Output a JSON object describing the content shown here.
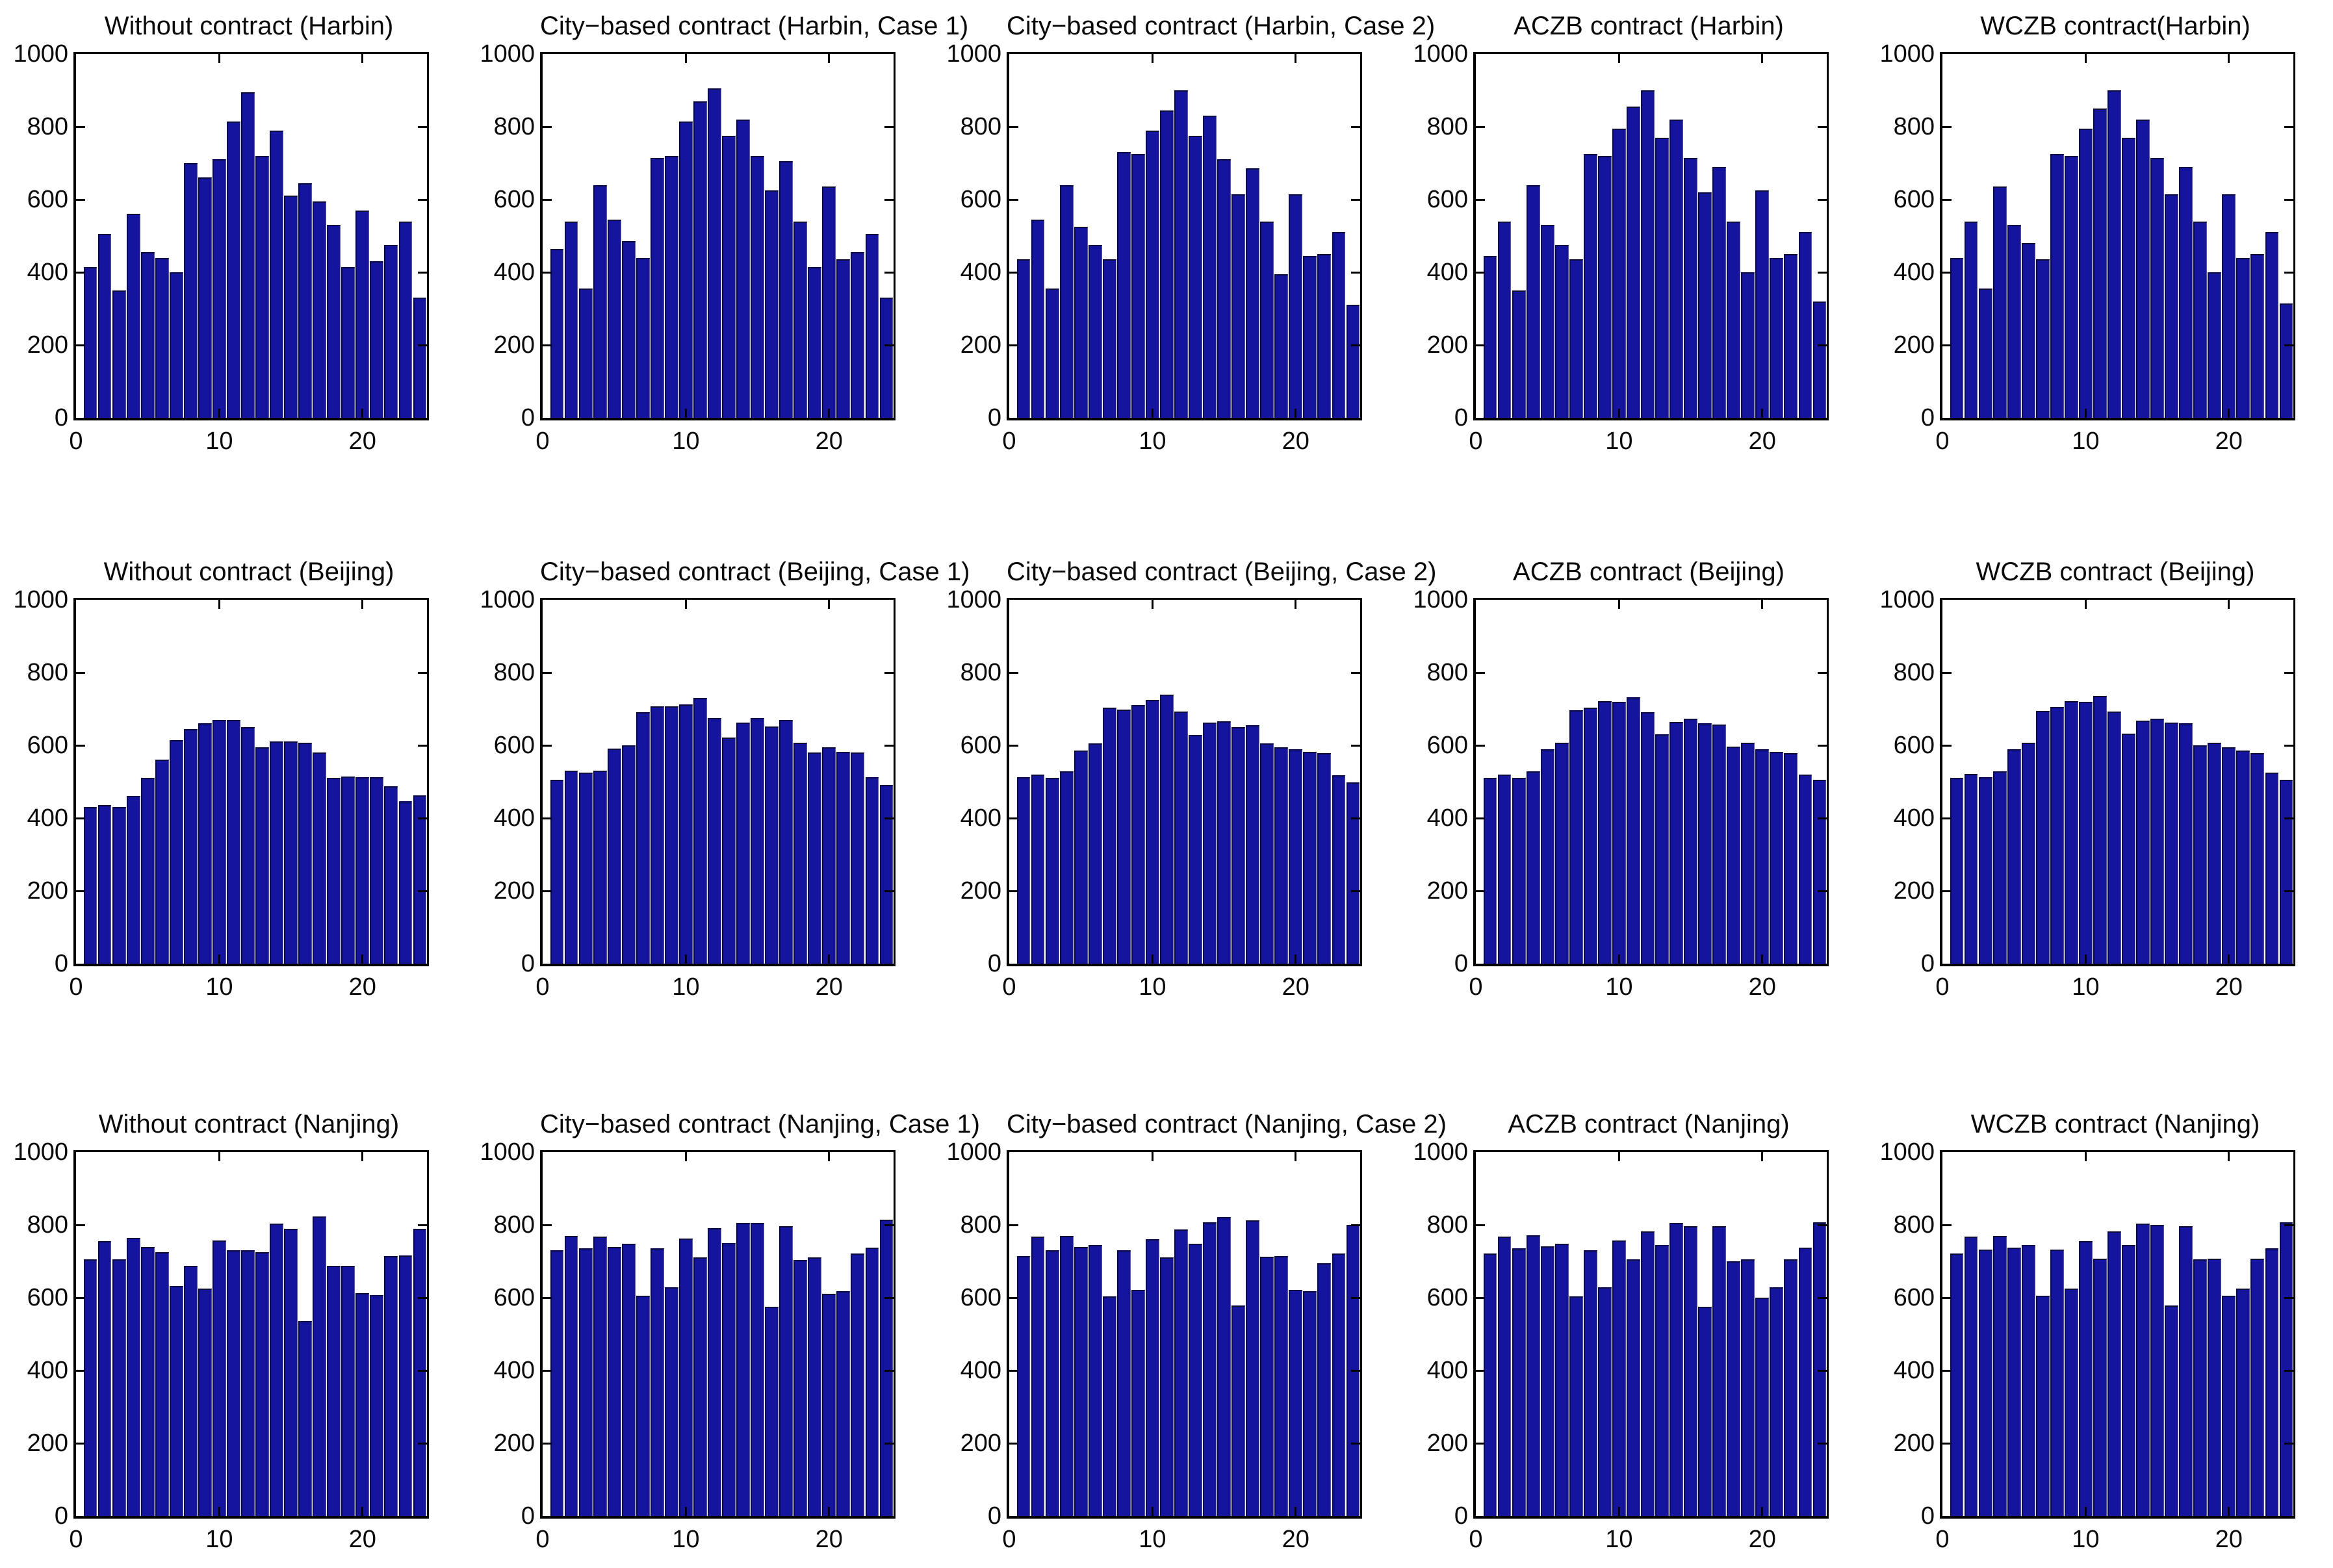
{
  "page": {
    "background": "#ffffff",
    "bar_fill": "#14149e",
    "bar_edge": "#0a0a3c",
    "axis_color": "#000000",
    "text_color": "#0b0b0b"
  },
  "layout_note_free": "",
  "axes_shared": {
    "x_range": [
      0,
      24.5
    ],
    "y_range": [
      0,
      1000
    ],
    "x_ticks": [
      0,
      10,
      20
    ],
    "y_ticks": [
      0,
      200,
      400,
      600,
      800,
      1000
    ],
    "grid": "off",
    "legend": "none"
  },
  "chart_data": [
    {
      "type": "bar",
      "title": "Without contract (Harbin)",
      "city": "Harbin",
      "contract": "Without contract",
      "x_hours": "1-24",
      "ylim": [
        0,
        1000
      ],
      "values": [
        415,
        505,
        350,
        560,
        455,
        440,
        400,
        700,
        660,
        710,
        815,
        895,
        720,
        790,
        610,
        645,
        595,
        530,
        415,
        570,
        430,
        475,
        540,
        330
      ]
    },
    {
      "type": "bar",
      "title": "City−based contract (Harbin, Case 1)",
      "city": "Harbin",
      "contract": "City-based contract, Case 1",
      "x_hours": "1-24",
      "ylim": [
        0,
        1000
      ],
      "values": [
        465,
        540,
        355,
        640,
        545,
        485,
        440,
        715,
        720,
        815,
        870,
        905,
        775,
        820,
        720,
        625,
        705,
        540,
        415,
        635,
        435,
        455,
        505,
        330
      ]
    },
    {
      "type": "bar",
      "title": "City−based contract (Harbin, Case 2)",
      "city": "Harbin",
      "contract": "City-based contract, Case 2",
      "x_hours": "1-24",
      "ylim": [
        0,
        1000
      ],
      "values": [
        435,
        545,
        355,
        640,
        525,
        475,
        435,
        730,
        725,
        790,
        845,
        900,
        775,
        830,
        710,
        615,
        685,
        540,
        395,
        615,
        445,
        450,
        510,
        310
      ]
    },
    {
      "type": "bar",
      "title": "ACZB contract (Harbin)",
      "city": "Harbin",
      "contract": "ACZB contract",
      "x_hours": "1-24",
      "ylim": [
        0,
        1000
      ],
      "values": [
        445,
        540,
        350,
        640,
        530,
        475,
        435,
        725,
        720,
        795,
        855,
        900,
        770,
        820,
        715,
        620,
        690,
        540,
        400,
        625,
        440,
        450,
        510,
        320
      ]
    },
    {
      "type": "bar",
      "title": "WCZB contract(Harbin)",
      "city": "Harbin",
      "contract": "WCZB contract",
      "x_hours": "1-24",
      "ylim": [
        0,
        1000
      ],
      "values": [
        440,
        540,
        355,
        635,
        530,
        480,
        435,
        725,
        720,
        795,
        850,
        900,
        770,
        820,
        715,
        615,
        690,
        540,
        400,
        615,
        440,
        450,
        510,
        315
      ]
    },
    {
      "type": "bar",
      "title": "Without contract (Beijing)",
      "city": "Beijing",
      "contract": "Without contract",
      "x_hours": "1-24",
      "ylim": [
        0,
        1000
      ],
      "values": [
        430,
        435,
        430,
        460,
        510,
        560,
        615,
        645,
        660,
        670,
        670,
        650,
        595,
        610,
        610,
        608,
        580,
        510,
        515,
        512,
        512,
        487,
        447,
        462
      ]
    },
    {
      "type": "bar",
      "title": "City−based contract (Beijing, Case 1)",
      "city": "Beijing",
      "contract": "City-based contract, Case 1",
      "x_hours": "1-24",
      "ylim": [
        0,
        1000
      ],
      "values": [
        505,
        530,
        525,
        530,
        592,
        600,
        692,
        707,
        707,
        712,
        730,
        675,
        622,
        662,
        675,
        652,
        670,
        608,
        580,
        595,
        582,
        580,
        512,
        492
      ]
    },
    {
      "type": "bar",
      "title": "City−based contract (Beijing, Case 2)",
      "city": "Beijing",
      "contract": "City-based contract, Case 2",
      "x_hours": "1-24",
      "ylim": [
        0,
        1000
      ],
      "values": [
        512,
        520,
        510,
        528,
        585,
        605,
        703,
        698,
        710,
        725,
        740,
        693,
        628,
        663,
        667,
        650,
        655,
        605,
        595,
        590,
        582,
        578,
        518,
        498
      ]
    },
    {
      "type": "bar",
      "title": "ACZB contract (Beijing)",
      "city": "Beijing",
      "contract": "ACZB contract",
      "x_hours": "1-24",
      "ylim": [
        0,
        1000
      ],
      "values": [
        510,
        520,
        510,
        528,
        590,
        608,
        697,
        703,
        722,
        720,
        733,
        692,
        630,
        665,
        673,
        660,
        658,
        597,
        608,
        590,
        583,
        578,
        520,
        505
      ]
    },
    {
      "type": "bar",
      "title": "WCZB contract (Beijing)",
      "city": "Beijing",
      "contract": "WCZB contract",
      "x_hours": "1-24",
      "ylim": [
        0,
        1000
      ],
      "values": [
        510,
        522,
        512,
        528,
        590,
        608,
        695,
        705,
        722,
        720,
        735,
        693,
        632,
        668,
        673,
        662,
        660,
        600,
        608,
        595,
        585,
        578,
        525,
        505
      ]
    },
    {
      "type": "bar",
      "title": "Without contract (Nanjing)",
      "city": "Nanjing",
      "contract": "Without contract",
      "x_hours": "1-24",
      "ylim": [
        0,
        1000
      ],
      "values": [
        705,
        755,
        705,
        765,
        740,
        725,
        632,
        687,
        625,
        758,
        730,
        730,
        725,
        803,
        790,
        535,
        823,
        687,
        688,
        612,
        607,
        715,
        717,
        790
      ]
    },
    {
      "type": "bar",
      "title": "City−based contract (Nanjing, Case 1)",
      "city": "Nanjing",
      "contract": "City-based contract, Case 1",
      "x_hours": "1-24",
      "ylim": [
        0,
        1000
      ],
      "values": [
        730,
        770,
        735,
        768,
        740,
        748,
        605,
        735,
        628,
        762,
        710,
        792,
        750,
        805,
        805,
        575,
        797,
        703,
        710,
        610,
        618,
        722,
        737,
        815
      ]
    },
    {
      "type": "bar",
      "title": "City−based contract (Nanjing, Case 2)",
      "city": "Nanjing",
      "contract": "City-based contract, Case 2",
      "x_hours": "1-24",
      "ylim": [
        0,
        1000
      ],
      "values": [
        715,
        768,
        730,
        770,
        740,
        745,
        603,
        730,
        622,
        760,
        710,
        788,
        748,
        807,
        822,
        578,
        813,
        712,
        715,
        622,
        618,
        695,
        722,
        800
      ]
    },
    {
      "type": "bar",
      "title": "ACZB contract (Nanjing)",
      "city": "Nanjing",
      "contract": "ACZB contract",
      "x_hours": "1-24",
      "ylim": [
        0,
        1000
      ],
      "values": [
        722,
        768,
        735,
        772,
        742,
        748,
        603,
        730,
        628,
        758,
        705,
        782,
        745,
        805,
        797,
        575,
        797,
        700,
        705,
        600,
        628,
        705,
        738,
        807
      ]
    },
    {
      "type": "bar",
      "title": "WCZB contract (Nanjing)",
      "city": "Nanjing",
      "contract": "WCZB contract",
      "x_hours": "1-24",
      "ylim": [
        0,
        1000
      ],
      "values": [
        722,
        768,
        732,
        770,
        738,
        745,
        605,
        732,
        625,
        755,
        708,
        783,
        745,
        803,
        800,
        578,
        797,
        705,
        707,
        605,
        625,
        707,
        735,
        808
      ]
    }
  ],
  "grid_layout": {
    "rows": 3,
    "cols": 5,
    "col_lefts": [
      8,
      726,
      1444,
      2162,
      2880
    ],
    "row_tops": [
      12,
      852,
      1702
    ]
  }
}
